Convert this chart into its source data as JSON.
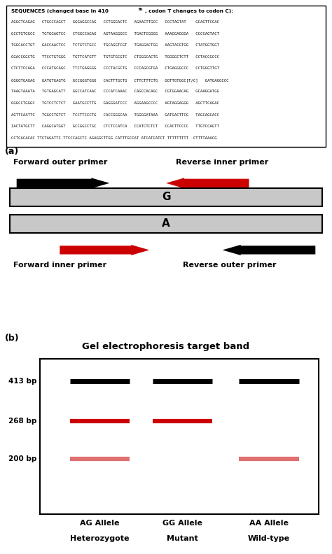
{
  "sequence_title_bold": "SEQUENCES (changed base in 410",
  "sequence_title_super": "th",
  "sequence_title_rest": ", codon T changes to codon C):",
  "sequences": [
    "AGGCTCAGAG   CTGCCCAGCT   GGGAGGCCAG   CCTGGGACTC   AGAACTTGCC   CCCTAGTAT    GCAGTTCCAC",
    "GCCTGTGGCC   TGTGGAGTCC   CTGGCCAGAG   AGTAAGGGCC   TGACTCGGGG   AAAGGAGGGA   CCCCAGTACT",
    "TGGCACCTGT   GACCAACTCC   TCTGTCTGCC   TGCAGGTCGT   TGAGGACTGG   AAGTACGTGG   CTATGGTGGT",
    "GGACCGGCTG   TTCCTGTGGG   TGTTCATGTT   TGTGTGCGTC   CTGGGCACTG   TGGGGCTCTT   CCTACCGCCC",
    "CTCTTCCAGA   CCCATGCAGC   TTCTGAGGGG   CCCTACGCTG   CCCAGCGTGA   CTGAGGGCCC   CCTGGGTTGT",
    "GGGGTGAGAG   GATGTGAGTG   GCCGGGTGGG   CACTTTGCTG   CTTCTTTCTG   GGTTGTGGC[T/C]   GATGAGGCCC",
    "TAAGTAAATA   TGTGAGCATT   GGCCATCAAC   CCCATCAAAC   CAGCCACAGC   CGTGGAACAG   GCAAGGATGG",
    "GGGCCTGGGC   TGTCCTCTCT   GAATGCCTTG   GAGGGATCCC   AGGAAGCCCC   AGTAGGAGGG   AGCTTCAGAC",
    "AGTTCAATTC   TGGCCTGTCT   TCCTTCCCTG   CACCGGGCAA   TGGGGATAAA   GATGACTTCG   TAGCAGCACC",
    "IACTATGCTT   CAGGCATGGT   GCCGGCCTGC   CTCTCCATCA   CCATCTCTCT   CCACTTCCCC   TTGTCCAGTT",
    "CCTCACACAC TTCTAGATTC TTCCCAGCTC AGAGGCTTGG CATTTGCCAT ATCATCATCT TTTTTTTTT  CTTTTAAACG"
  ],
  "label_a": "(a)",
  "label_b": "(b)",
  "forward_outer_label": "Forward outer primer",
  "reverse_inner_label": "Reverse inner primer",
  "forward_inner_label": "Forward inner primer",
  "reverse_outer_label": "Reverse outer primer",
  "allele_G_label": "G",
  "allele_A_label": "A",
  "gel_title": "Gel electrophoresis target band",
  "bp_labels": [
    "413 bp",
    "268 bp",
    "200 bp"
  ],
  "allele_labels": [
    [
      "AG Allele",
      "Heterozygote"
    ],
    [
      "GG Allele",
      "Mutant"
    ],
    [
      "AA Allele",
      "Wild-type"
    ]
  ],
  "black_color": "#000000",
  "red_color": "#cc0000",
  "light_red_color": "#e07070",
  "gray_color": "#c8c8c8",
  "white_color": "#ffffff",
  "bg_color": "#ffffff"
}
